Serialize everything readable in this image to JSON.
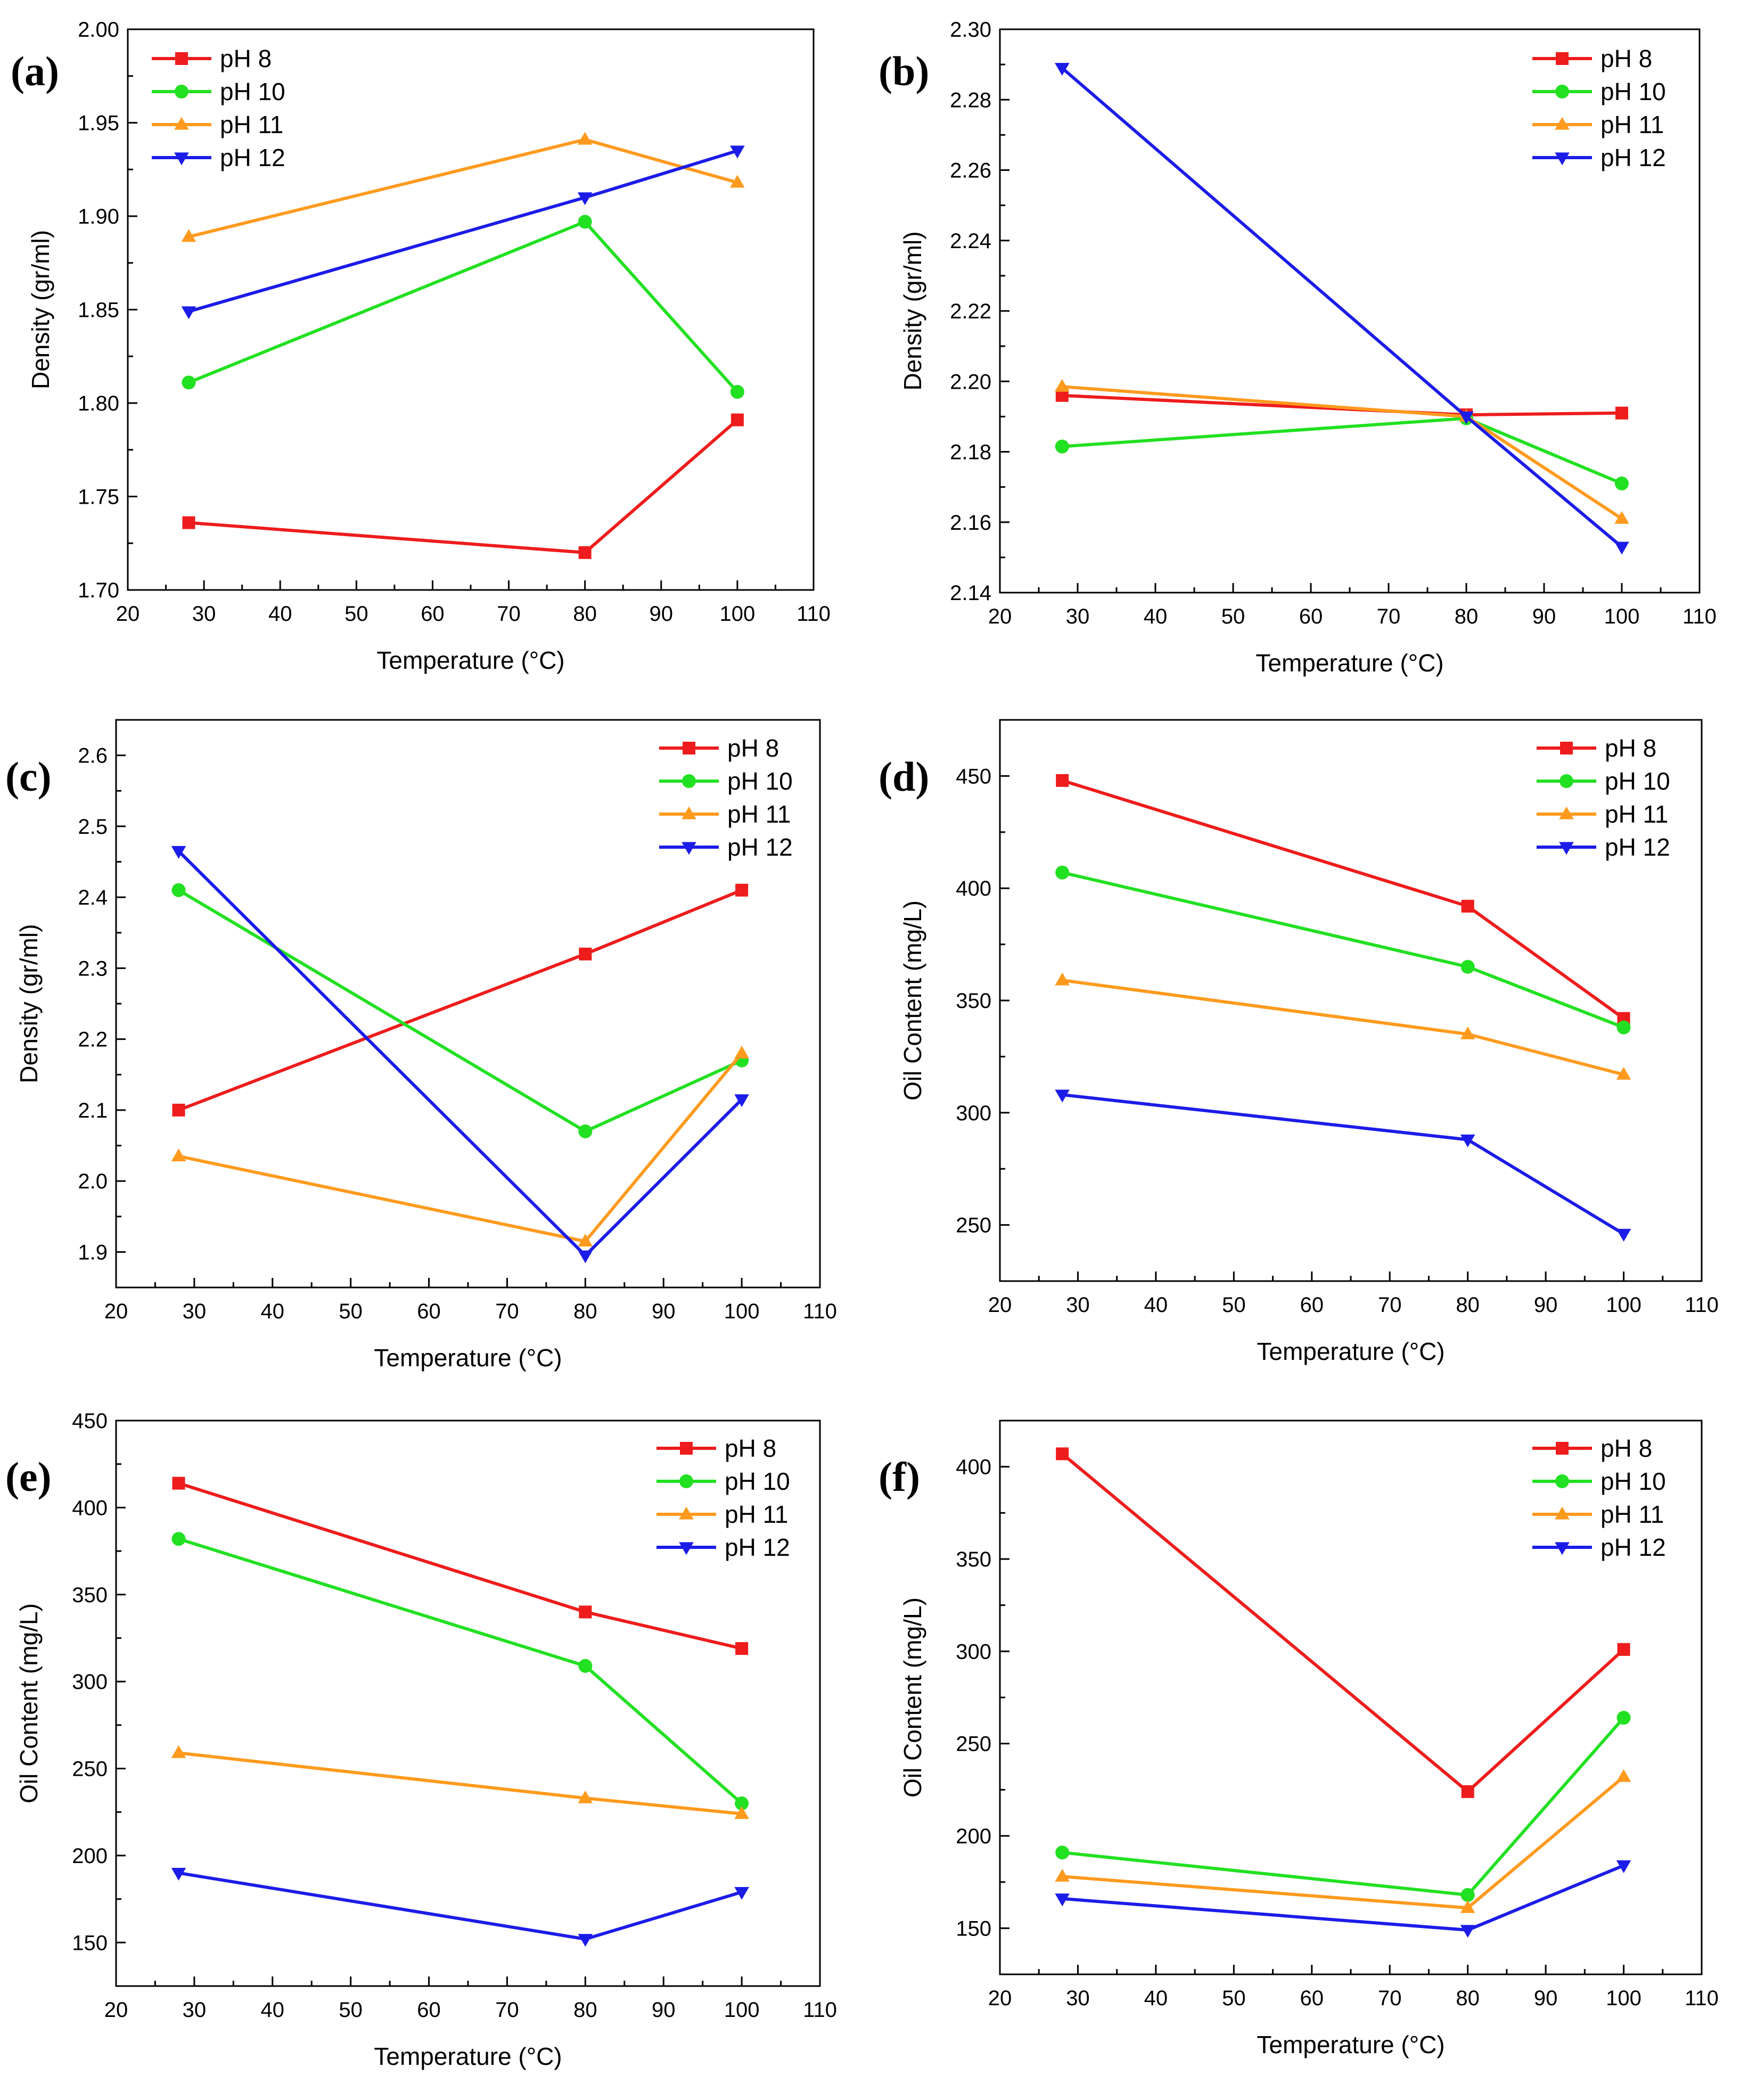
{
  "figure": {
    "series_colors": {
      "pH 8": "#ee1c1c",
      "pH 10": "#22e022",
      "pH 11": "#ff9a1e",
      "pH 12": "#1c1ce8"
    },
    "series_markers": {
      "pH 8": "square",
      "pH 10": "circle",
      "pH 11": "triangle-up",
      "pH 12": "triangle-down"
    }
  },
  "chart_data": [
    {
      "panel": "(a)",
      "type": "line",
      "xlabel": "Temperature (°C)",
      "ylabel": "Density (gr/ml)",
      "xlim": [
        20,
        110
      ],
      "ylim": [
        1.7,
        2.0
      ],
      "xticks": [
        "20",
        "30",
        "40",
        "50",
        "60",
        "70",
        "80",
        "90",
        "100",
        "110"
      ],
      "yticks": [
        "1.70",
        "1.75",
        "1.80",
        "1.85",
        "1.90",
        "1.95",
        "2.00"
      ],
      "x": [
        28,
        80,
        100
      ],
      "legend_position": "top-left",
      "series": [
        {
          "name": "pH 8",
          "values": [
            1.736,
            1.72,
            1.791
          ]
        },
        {
          "name": "pH 10",
          "values": [
            1.811,
            1.897,
            1.806
          ]
        },
        {
          "name": "pH 11",
          "values": [
            1.889,
            1.941,
            1.918
          ]
        },
        {
          "name": "pH 12",
          "values": [
            1.849,
            1.91,
            1.935
          ]
        }
      ]
    },
    {
      "panel": "(b)",
      "type": "line",
      "xlabel": "Temperature (°C)",
      "ylabel": "Density (gr/ml)",
      "xlim": [
        20,
        110
      ],
      "ylim": [
        2.14,
        2.3
      ],
      "xticks": [
        "20",
        "30",
        "40",
        "50",
        "60",
        "70",
        "80",
        "90",
        "100",
        "110"
      ],
      "yticks": [
        "2.14",
        "2.16",
        "2.18",
        "2.20",
        "2.22",
        "2.24",
        "2.26",
        "2.28",
        "2.30"
      ],
      "x": [
        28,
        80,
        100
      ],
      "legend_position": "top-right",
      "series": [
        {
          "name": "pH 8",
          "values": [
            2.196,
            2.1905,
            2.191
          ]
        },
        {
          "name": "pH 10",
          "values": [
            2.1815,
            2.1895,
            2.171
          ]
        },
        {
          "name": "pH 11",
          "values": [
            2.1985,
            2.19,
            2.161
          ]
        },
        {
          "name": "pH 12",
          "values": [
            2.289,
            2.19,
            2.153
          ]
        }
      ]
    },
    {
      "panel": "(c)",
      "type": "line",
      "xlabel": "Temperature (°C)",
      "ylabel": "Density (gr/ml)",
      "xlim": [
        20,
        110
      ],
      "ylim": [
        1.85,
        2.65
      ],
      "xticks": [
        "20",
        "30",
        "40",
        "50",
        "60",
        "70",
        "80",
        "90",
        "100",
        "110"
      ],
      "yticks": [
        "1.9",
        "2.0",
        "2.1",
        "2.2",
        "2.3",
        "2.4",
        "2.5",
        "2.6"
      ],
      "x": [
        28,
        80,
        100
      ],
      "legend_position": "top-right",
      "series": [
        {
          "name": "pH 8",
          "values": [
            2.1,
            2.32,
            2.41
          ]
        },
        {
          "name": "pH 10",
          "values": [
            2.41,
            2.07,
            2.17
          ]
        },
        {
          "name": "pH 11",
          "values": [
            2.035,
            1.915,
            2.18
          ]
        },
        {
          "name": "pH 12",
          "values": [
            2.465,
            1.895,
            2.115
          ]
        }
      ]
    },
    {
      "panel": "(d)",
      "type": "line",
      "xlabel": "Temperature (°C)",
      "ylabel": "Oil Content (mg/L)",
      "xlim": [
        20,
        110
      ],
      "ylim": [
        225,
        475
      ],
      "xticks": [
        "20",
        "30",
        "40",
        "50",
        "60",
        "70",
        "80",
        "90",
        "100",
        "110"
      ],
      "yticks": [
        "250",
        "300",
        "350",
        "400",
        "450"
      ],
      "x": [
        28,
        80,
        100
      ],
      "legend_position": "top-right",
      "series": [
        {
          "name": "pH 8",
          "values": [
            448,
            392,
            342
          ]
        },
        {
          "name": "pH 10",
          "values": [
            407,
            365,
            338
          ]
        },
        {
          "name": "pH 11",
          "values": [
            359,
            335,
            317
          ]
        },
        {
          "name": "pH 12",
          "values": [
            308,
            288,
            246
          ]
        }
      ]
    },
    {
      "panel": "(e)",
      "type": "line",
      "xlabel": "Temperature (°C)",
      "ylabel": "Oil Content (mg/L)",
      "xlim": [
        20,
        110
      ],
      "ylim": [
        125,
        450
      ],
      "xticks": [
        "20",
        "30",
        "40",
        "50",
        "60",
        "70",
        "80",
        "90",
        "100",
        "110"
      ],
      "yticks": [
        "150",
        "200",
        "250",
        "300",
        "350",
        "400",
        "450"
      ],
      "x": [
        28,
        80,
        100
      ],
      "legend_position": "top-right",
      "series": [
        {
          "name": "pH 8",
          "values": [
            414,
            340,
            319
          ]
        },
        {
          "name": "pH 10",
          "values": [
            382,
            309,
            230
          ]
        },
        {
          "name": "pH 11",
          "values": [
            259,
            233,
            224
          ]
        },
        {
          "name": "pH 12",
          "values": [
            190,
            152,
            179
          ]
        }
      ]
    },
    {
      "panel": "(f)",
      "type": "line",
      "xlabel": "Temperature (°C)",
      "ylabel": "Oil Content (mg/L)",
      "xlim": [
        20,
        110
      ],
      "ylim": [
        125,
        425
      ],
      "xticks": [
        "20",
        "30",
        "40",
        "50",
        "60",
        "70",
        "80",
        "90",
        "100",
        "110"
      ],
      "yticks": [
        "150",
        "200",
        "250",
        "300",
        "350",
        "400"
      ],
      "x": [
        28,
        80,
        100
      ],
      "legend_position": "top-right",
      "series": [
        {
          "name": "pH 8",
          "values": [
            407,
            224,
            301
          ]
        },
        {
          "name": "pH 10",
          "values": [
            191,
            168,
            264
          ]
        },
        {
          "name": "pH 11",
          "values": [
            178,
            161,
            232
          ]
        },
        {
          "name": "pH 12",
          "values": [
            166,
            149,
            184
          ]
        }
      ]
    }
  ]
}
